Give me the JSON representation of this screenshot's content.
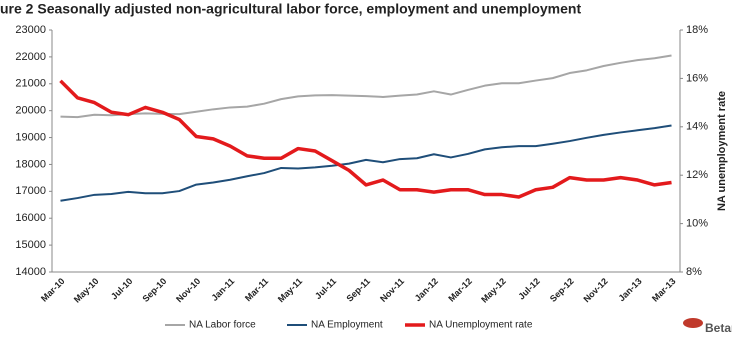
{
  "chart_data": {
    "type": "line",
    "title": "ure 2 Seasonally adjusted non-agricultural labor force, employment and unemployment",
    "y2label": "NA unemployment rate",
    "logo": "Betam",
    "categories": [
      "Mar-10",
      null,
      "May-10",
      null,
      "Jul-10",
      null,
      "Sep-10",
      null,
      "Nov-10",
      null,
      "Jan-11",
      null,
      "Mar-11",
      null,
      "May-11",
      null,
      "Jul-11",
      null,
      "Sep-11",
      null,
      "Nov-11",
      null,
      "Jan-12",
      null,
      "Mar-12",
      null,
      "May-12",
      null,
      "Jul-12",
      null,
      "Sep-12",
      null,
      "Nov-12",
      null,
      "Jan-13",
      null,
      "Mar-13"
    ],
    "series": [
      {
        "name": "NA Labor force",
        "color": "#a6a6a6",
        "values": [
          19780,
          19760,
          19850,
          19830,
          19870,
          19900,
          19880,
          19870,
          19960,
          20050,
          20120,
          20150,
          20260,
          20430,
          20530,
          20570,
          20580,
          20560,
          20540,
          20510,
          20560,
          20600,
          20720,
          20600,
          20770,
          20930,
          21020,
          21020,
          21120,
          21210,
          21400,
          21500,
          21660,
          21780,
          21880,
          21950,
          22050
        ]
      },
      {
        "name": "NA Employment",
        "color": "#1f4e79",
        "values": [
          16650,
          16750,
          16870,
          16900,
          16980,
          16930,
          16930,
          17010,
          17250,
          17330,
          17430,
          17560,
          17680,
          17870,
          17850,
          17890,
          17950,
          18030,
          18170,
          18080,
          18200,
          18230,
          18380,
          18260,
          18390,
          18560,
          18640,
          18680,
          18680,
          18770,
          18870,
          18990,
          19100,
          19190,
          19270,
          19350,
          19450
        ]
      },
      {
        "name": "NA Unemployment rate",
        "color": "#e31a1c",
        "axis": "y2",
        "values": [
          15.9,
          15.2,
          15.0,
          14.6,
          14.5,
          14.8,
          14.6,
          14.3,
          13.6,
          13.5,
          13.2,
          12.8,
          12.7,
          12.7,
          13.1,
          13.0,
          12.6,
          12.2,
          11.6,
          11.8,
          11.4,
          11.4,
          11.3,
          11.4,
          11.4,
          11.2,
          11.2,
          11.1,
          11.4,
          11.5,
          11.9,
          11.8,
          11.8,
          11.9,
          11.8,
          11.6,
          11.7
        ]
      }
    ],
    "ylim": [
      14000,
      23000
    ],
    "yticks": [
      14000,
      15000,
      16000,
      17000,
      18000,
      19000,
      20000,
      21000,
      22000,
      23000
    ],
    "y2lim": [
      8,
      18
    ],
    "y2ticks": [
      {
        "value": 8,
        "label": "8%"
      },
      {
        "value": 10,
        "label": "10%"
      },
      {
        "value": 12,
        "label": "12%"
      },
      {
        "value": 14,
        "label": "14%"
      },
      {
        "value": 16,
        "label": "16%"
      },
      {
        "value": 18,
        "label": "18%"
      }
    ]
  }
}
